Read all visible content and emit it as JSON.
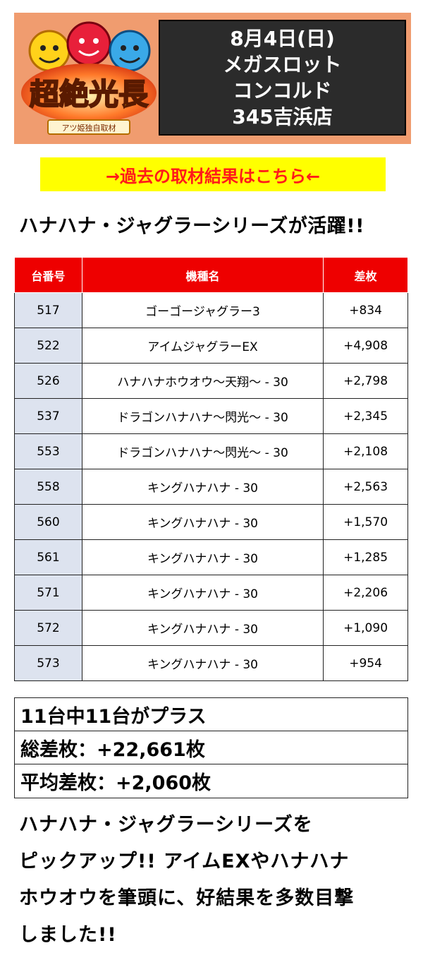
{
  "header": {
    "logo_text": "超絶光長",
    "logo_subtext": "アツ姫独自取材",
    "date": "8月4日(日)",
    "store_line1": "メガスロット",
    "store_line2": "コンコルド",
    "store_line3": "345吉浜店"
  },
  "link": {
    "label": "→過去の取材結果はこちら←"
  },
  "headline": "ハナハナ・ジャグラーシリーズが活躍!!",
  "table": {
    "headers": [
      "台番号",
      "機種名",
      "差枚"
    ],
    "rows": [
      {
        "no": "517",
        "name": "ゴーゴージャグラー3",
        "diff": "+834"
      },
      {
        "no": "522",
        "name": "アイムジャグラーEX",
        "diff": "+4,908"
      },
      {
        "no": "526",
        "name": "ハナハナホウオウ～天翔～ - 30",
        "diff": "+2,798"
      },
      {
        "no": "537",
        "name": "ドラゴンハナハナ～閃光～ - 30",
        "diff": "+2,345"
      },
      {
        "no": "553",
        "name": "ドラゴンハナハナ～閃光～ - 30",
        "diff": "+2,108"
      },
      {
        "no": "558",
        "name": "キングハナハナ - 30",
        "diff": "+2,563"
      },
      {
        "no": "560",
        "name": "キングハナハナ - 30",
        "diff": "+1,570"
      },
      {
        "no": "561",
        "name": "キングハナハナ - 30",
        "diff": "+1,285"
      },
      {
        "no": "571",
        "name": "キングハナハナ - 30",
        "diff": "+2,206"
      },
      {
        "no": "572",
        "name": "キングハナハナ - 30",
        "diff": "+1,090"
      },
      {
        "no": "573",
        "name": "キングハナハナ - 30",
        "diff": "+954"
      }
    ]
  },
  "summary": {
    "plus_count": "11台中11台がプラス",
    "total": "総差枚：+22,661枚",
    "average": "平均差枚：+2,060枚"
  },
  "comment": {
    "line1": "ハナハナ・ジャグラーシリーズを",
    "line2": "ピックアップ!! アイムEXやハナハナ",
    "line3": "ホウオウを筆頭に、好結果を多数目撃",
    "line4": "しました!!"
  },
  "colors": {
    "banner_bg": "#f09c6f",
    "info_bg": "#2b2b2b",
    "link_bg": "#ffff00",
    "link_text": "#ff1a1a",
    "table_header": "#ee0000",
    "number_cell": "#dde3ef"
  }
}
